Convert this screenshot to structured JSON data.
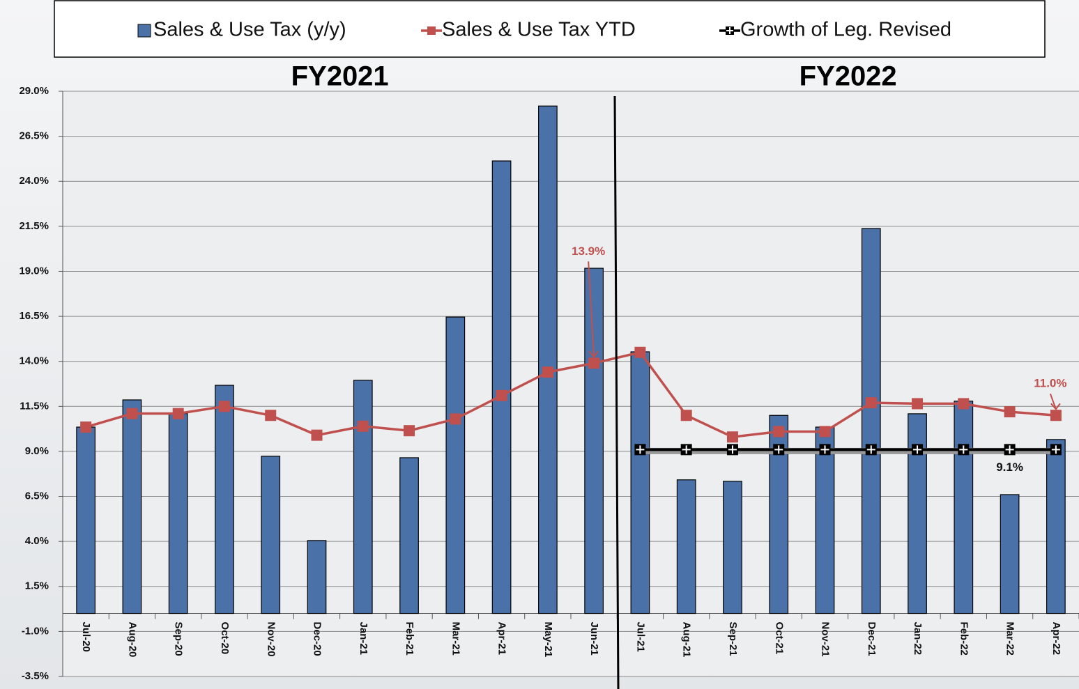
{
  "chart_data": {
    "type": "bar",
    "annotations": [
      "FY2021",
      "FY2022"
    ],
    "categories": [
      "Jul-20",
      "Aug-20",
      "Sep-20",
      "Oct-20",
      "Nov-20",
      "Dec-20",
      "Jan-21",
      "Feb-21",
      "Mar-21",
      "Apr-21",
      "May-21",
      "Jun-21",
      "Jul-21",
      "Aug-21",
      "Sep-21",
      "Oct-21",
      "Nov-21",
      "Dec-21",
      "Jan-22",
      "Feb-22",
      "Mar-22",
      "Apr-22"
    ],
    "series": [
      {
        "name": "Sales & Use Tax (y/y)",
        "type": "bar",
        "color": "#4a72a8",
        "values": [
          10.35,
          11.86,
          11.1,
          12.67,
          8.73,
          4.05,
          12.95,
          8.65,
          16.46,
          25.13,
          28.18,
          19.17,
          14.53,
          7.42,
          7.34,
          11.0,
          10.35,
          21.38,
          11.09,
          11.79,
          6.6,
          9.66
        ]
      },
      {
        "name": "Sales & Use Tax YTD",
        "type": "line",
        "color": "#c0504d",
        "values": [
          10.35,
          11.1,
          11.1,
          11.5,
          11.0,
          9.9,
          10.4,
          10.15,
          10.8,
          12.1,
          13.4,
          13.9,
          14.5,
          11.0,
          9.8,
          10.1,
          10.1,
          11.7,
          11.65,
          11.65,
          11.2,
          11.0
        ],
        "value_labels": [
          null,
          null,
          null,
          null,
          null,
          null,
          null,
          null,
          null,
          null,
          null,
          "13.9%",
          null,
          null,
          null,
          null,
          null,
          null,
          null,
          null,
          null,
          "11.0%"
        ]
      },
      {
        "name": "Growth of Leg. Revised",
        "type": "line",
        "color": "#000000",
        "values": [
          null,
          null,
          null,
          null,
          null,
          null,
          null,
          null,
          null,
          null,
          null,
          null,
          9.1,
          9.1,
          9.1,
          9.1,
          9.1,
          9.1,
          9.1,
          9.1,
          9.1,
          9.1
        ],
        "value_labels": [
          null,
          null,
          null,
          null,
          null,
          null,
          null,
          null,
          null,
          null,
          null,
          null,
          null,
          null,
          null,
          null,
          null,
          null,
          null,
          null,
          "9.1%",
          null
        ]
      }
    ],
    "ylim": [
      -3.5,
      29.0
    ],
    "yticks": [
      {
        "value": 29.0,
        "label": "29.0%"
      },
      {
        "value": 26.5,
        "label": "26.5%"
      },
      {
        "value": 24.0,
        "label": "24.0%"
      },
      {
        "value": 21.5,
        "label": "21.5%"
      },
      {
        "value": 19.0,
        "label": "19.0%"
      },
      {
        "value": 16.5,
        "label": "16.5%"
      },
      {
        "value": 14.0,
        "label": "14.0%"
      },
      {
        "value": 11.5,
        "label": "11.5%"
      },
      {
        "value": 9.0,
        "label": "9.0%"
      },
      {
        "value": 6.5,
        "label": "6.5%"
      },
      {
        "value": 4.0,
        "label": "4.0%"
      },
      {
        "value": 1.5,
        "label": "1.5%"
      },
      {
        "value": -1.0,
        "label": "-1.0%"
      },
      {
        "value": -3.5,
        "label": "-3.5%"
      }
    ],
    "grid": true,
    "legend": "top"
  }
}
